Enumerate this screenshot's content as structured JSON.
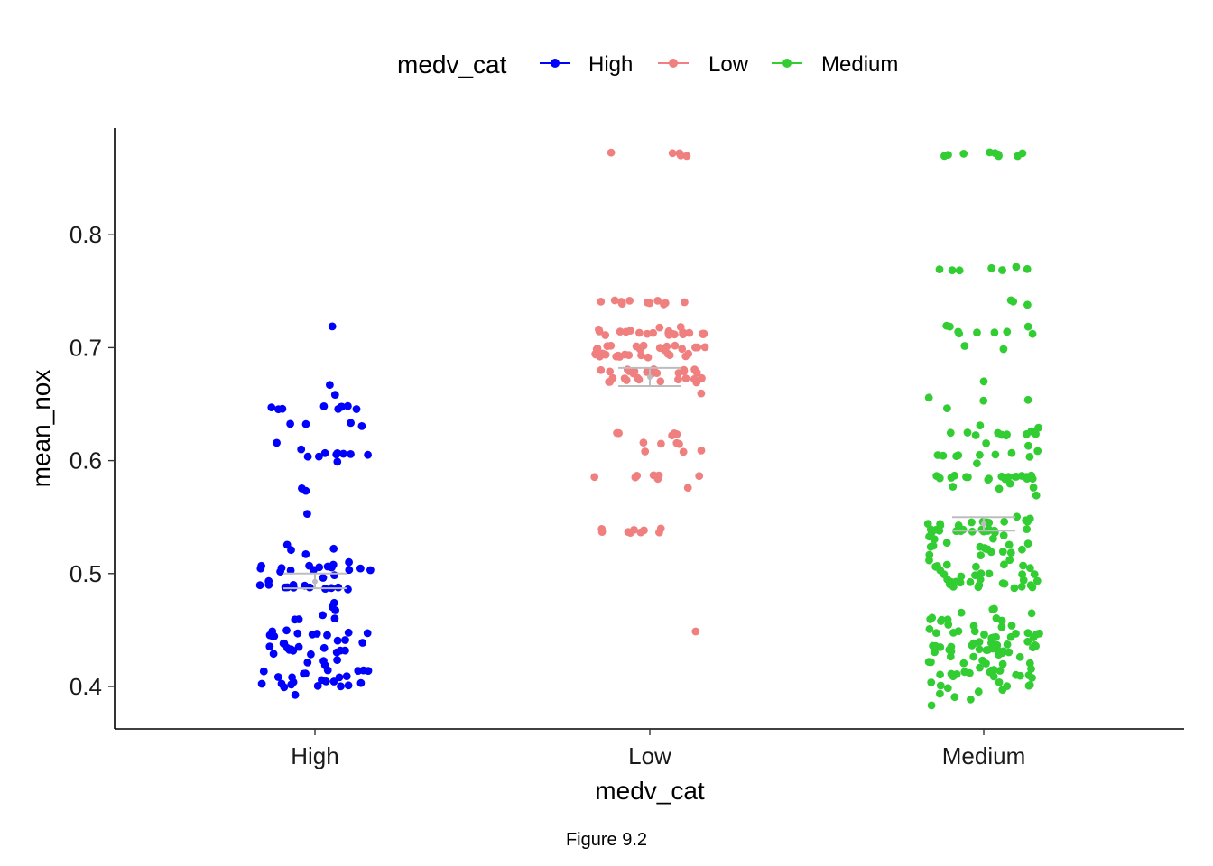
{
  "caption": "Figure 9.2",
  "chart_data": {
    "type": "scatter",
    "subtype": "jitter-strip",
    "xlabel": "medv_cat",
    "ylabel": "mean_nox",
    "categories": [
      "High",
      "Low",
      "Medium"
    ],
    "ylim": [
      0.37,
      0.9
    ],
    "yticks": [
      0.4,
      0.5,
      0.6,
      0.7,
      0.8
    ],
    "y_tick_labels": [
      "0.4",
      "0.5",
      "0.6",
      "0.7",
      "0.8"
    ],
    "grid": false,
    "legend": {
      "title": "medv_cat",
      "position": "top",
      "entries": [
        {
          "label": "High",
          "color": "#0000ff"
        },
        {
          "label": "Low",
          "color": "#f08080"
        },
        {
          "label": "Medium",
          "color": "#32cd32"
        }
      ]
    },
    "summary": [
      {
        "category": "High",
        "mean": 0.493,
        "ci": [
          0.487,
          0.5
        ]
      },
      {
        "category": "Low",
        "mean": 0.674,
        "ci": [
          0.666,
          0.682
        ]
      },
      {
        "category": "Medium",
        "mean": 0.544,
        "ci": [
          0.538,
          0.55
        ]
      }
    ],
    "series": [
      {
        "name": "High",
        "color": "#0000ff",
        "values": [
          0.718,
          0.669,
          0.659,
          0.647,
          0.647,
          0.647,
          0.647,
          0.647,
          0.647,
          0.647,
          0.647,
          0.647,
          0.632,
          0.632,
          0.632,
          0.632,
          0.615,
          0.61,
          0.605,
          0.605,
          0.605,
          0.605,
          0.605,
          0.605,
          0.605,
          0.605,
          0.598,
          0.575,
          0.575,
          0.551,
          0.524,
          0.52,
          0.52,
          0.516,
          0.51,
          0.507,
          0.507,
          0.507,
          0.507,
          0.507,
          0.505,
          0.505,
          0.505,
          0.505,
          0.505,
          0.504,
          0.504,
          0.503,
          0.502,
          0.5,
          0.497,
          0.495,
          0.489,
          0.489,
          0.489,
          0.489,
          0.489,
          0.489,
          0.489,
          0.488,
          0.488,
          0.488,
          0.488,
          0.488,
          0.474,
          0.472,
          0.466,
          0.462,
          0.46,
          0.46,
          0.459,
          0.449,
          0.449,
          0.448,
          0.448,
          0.447,
          0.446,
          0.446,
          0.445,
          0.445,
          0.444,
          0.443,
          0.442,
          0.44,
          0.438,
          0.438,
          0.437,
          0.437,
          0.437,
          0.436,
          0.435,
          0.433,
          0.433,
          0.432,
          0.431,
          0.431,
          0.43,
          0.429,
          0.428,
          0.424,
          0.422,
          0.421,
          0.418,
          0.416,
          0.414,
          0.413,
          0.413,
          0.413,
          0.412,
          0.411,
          0.41,
          0.41,
          0.41,
          0.409,
          0.406,
          0.405,
          0.405,
          0.404,
          0.404,
          0.403,
          0.403,
          0.402,
          0.402,
          0.401,
          0.401,
          0.4,
          0.394
        ]
      },
      {
        "name": "Low",
        "color": "#f08080",
        "values": [
          0.871,
          0.871,
          0.871,
          0.871,
          0.871,
          0.74,
          0.74,
          0.74,
          0.74,
          0.74,
          0.74,
          0.74,
          0.74,
          0.74,
          0.74,
          0.74,
          0.718,
          0.718,
          0.718,
          0.713,
          0.713,
          0.713,
          0.713,
          0.713,
          0.713,
          0.713,
          0.713,
          0.713,
          0.713,
          0.713,
          0.713,
          0.713,
          0.713,
          0.713,
          0.713,
          0.713,
          0.713,
          0.713,
          0.713,
          0.7,
          0.7,
          0.7,
          0.7,
          0.7,
          0.7,
          0.7,
          0.7,
          0.7,
          0.7,
          0.7,
          0.7,
          0.7,
          0.7,
          0.7,
          0.693,
          0.693,
          0.693,
          0.693,
          0.693,
          0.693,
          0.693,
          0.693,
          0.693,
          0.693,
          0.693,
          0.693,
          0.693,
          0.693,
          0.693,
          0.693,
          0.693,
          0.679,
          0.679,
          0.679,
          0.679,
          0.679,
          0.679,
          0.679,
          0.679,
          0.679,
          0.679,
          0.679,
          0.679,
          0.679,
          0.679,
          0.679,
          0.679,
          0.679,
          0.673,
          0.673,
          0.673,
          0.673,
          0.671,
          0.671,
          0.671,
          0.671,
          0.671,
          0.671,
          0.671,
          0.671,
          0.671,
          0.671,
          0.659,
          0.624,
          0.624,
          0.624,
          0.624,
          0.624,
          0.614,
          0.614,
          0.614,
          0.614,
          0.609,
          0.609,
          0.609,
          0.585,
          0.585,
          0.585,
          0.585,
          0.585,
          0.585,
          0.585,
          0.574,
          0.538,
          0.538,
          0.538,
          0.538,
          0.538,
          0.538,
          0.538,
          0.538,
          0.538,
          0.448
        ]
      },
      {
        "name": "Medium",
        "color": "#32cd32",
        "values": [
          0.871,
          0.871,
          0.871,
          0.871,
          0.871,
          0.871,
          0.871,
          0.871,
          0.871,
          0.77,
          0.77,
          0.77,
          0.77,
          0.77,
          0.77,
          0.77,
          0.74,
          0.74,
          0.74,
          0.718,
          0.718,
          0.718,
          0.713,
          0.713,
          0.713,
          0.713,
          0.713,
          0.713,
          0.7,
          0.7,
          0.671,
          0.655,
          0.655,
          0.655,
          0.647,
          0.631,
          0.631,
          0.624,
          0.624,
          0.624,
          0.624,
          0.624,
          0.624,
          0.624,
          0.624,
          0.624,
          0.624,
          0.624,
          0.614,
          0.614,
          0.609,
          0.605,
          0.605,
          0.605,
          0.605,
          0.605,
          0.605,
          0.605,
          0.605,
          0.597,
          0.585,
          0.585,
          0.585,
          0.585,
          0.585,
          0.585,
          0.585,
          0.585,
          0.585,
          0.585,
          0.585,
          0.585,
          0.585,
          0.585,
          0.585,
          0.585,
          0.585,
          0.585,
          0.585,
          0.58,
          0.575,
          0.575,
          0.575,
          0.57,
          0.55,
          0.55,
          0.548,
          0.547,
          0.547,
          0.544,
          0.544,
          0.544,
          0.544,
          0.544,
          0.544,
          0.544,
          0.544,
          0.538,
          0.538,
          0.538,
          0.538,
          0.538,
          0.538,
          0.538,
          0.538,
          0.538,
          0.538,
          0.538,
          0.538,
          0.538,
          0.538,
          0.538,
          0.532,
          0.532,
          0.532,
          0.532,
          0.528,
          0.525,
          0.524,
          0.524,
          0.524,
          0.524,
          0.524,
          0.52,
          0.52,
          0.52,
          0.52,
          0.52,
          0.52,
          0.515,
          0.515,
          0.51,
          0.51,
          0.507,
          0.507,
          0.507,
          0.507,
          0.507,
          0.507,
          0.504,
          0.504,
          0.504,
          0.499,
          0.499,
          0.499,
          0.499,
          0.499,
          0.499,
          0.499,
          0.493,
          0.493,
          0.493,
          0.493,
          0.493,
          0.493,
          0.493,
          0.493,
          0.493,
          0.493,
          0.489,
          0.489,
          0.489,
          0.489,
          0.489,
          0.489,
          0.489,
          0.489,
          0.489,
          0.47,
          0.468,
          0.464,
          0.464,
          0.462,
          0.46,
          0.46,
          0.46,
          0.458,
          0.458,
          0.458,
          0.453,
          0.453,
          0.453,
          0.453,
          0.449,
          0.449,
          0.449,
          0.449,
          0.448,
          0.448,
          0.448,
          0.448,
          0.445,
          0.445,
          0.445,
          0.445,
          0.442,
          0.442,
          0.442,
          0.439,
          0.439,
          0.439,
          0.439,
          0.437,
          0.437,
          0.437,
          0.437,
          0.437,
          0.437,
          0.437,
          0.437,
          0.433,
          0.433,
          0.433,
          0.433,
          0.433,
          0.433,
          0.433,
          0.433,
          0.433,
          0.431,
          0.431,
          0.431,
          0.428,
          0.428,
          0.428,
          0.426,
          0.426,
          0.422,
          0.422,
          0.422,
          0.422,
          0.422,
          0.42,
          0.42,
          0.415,
          0.415,
          0.415,
          0.415,
          0.413,
          0.413,
          0.413,
          0.413,
          0.413,
          0.41,
          0.41,
          0.41,
          0.41,
          0.41,
          0.41,
          0.407,
          0.407,
          0.405,
          0.405,
          0.401,
          0.401,
          0.401,
          0.4,
          0.4,
          0.396,
          0.396,
          0.392,
          0.392,
          0.39,
          0.385
        ]
      }
    ]
  }
}
